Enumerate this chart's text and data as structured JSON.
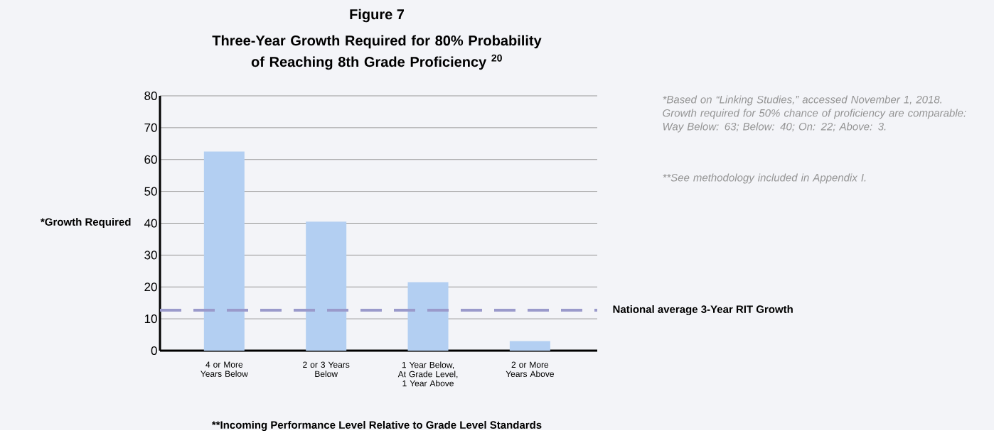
{
  "chart_data": {
    "type": "bar",
    "title": "Figure 7",
    "subtitle": "Three-Year Growth Required for 80% Probability of Reaching 8th Grade Proficiency $^{20}$",
    "xlabel": "**Incoming Performance Level Relative to Grade Level Standards",
    "ylabel": "*Growth Required",
    "categories": [
      "4 or More Years Below",
      "2 or 3 Years Below",
      "1 Year Below, At Grade Level, 1 Year Above",
      "2 or More Years Above"
    ],
    "values": [
      62.5,
      40.5,
      21.5,
      3
    ],
    "color": "#b3cff2",
    "ylim": [
      0,
      80
    ],
    "yticks": [
      0,
      10,
      20,
      30,
      40,
      50,
      60,
      70,
      80
    ],
    "grid": "y",
    "ref_lines": [
      {
        "axis": "y",
        "value": 12.7,
        "label": "National average 3-Year RIT Growth",
        "color": "#9a9acb",
        "line_style": "dashed"
      }
    ],
    "annotations": [
      "*Based on “Linking Studies,” accessed November 1, 2018.  Growth required for 50% chance of proficiency are comparable: Way Below: 63; Below: 40; On: 22; Above: 3.",
      "**See methodology included in Appendix I."
    ]
  }
}
